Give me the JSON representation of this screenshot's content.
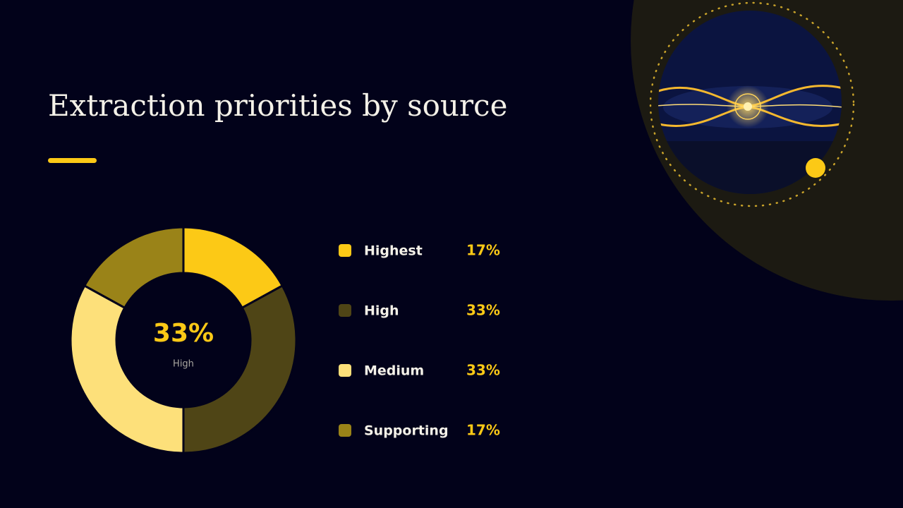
{
  "chart_data": {
    "type": "pie",
    "donut": true,
    "title": "Extraction priorities by source",
    "categories": [
      "Highest",
      "High",
      "Medium",
      "Supporting"
    ],
    "values": [
      17,
      33,
      33,
      17
    ],
    "value_labels": [
      "17%",
      "33%",
      "33%",
      "17%"
    ],
    "colors": [
      "#fcc916",
      "#4f4516",
      "#fde07a",
      "#9a8318"
    ],
    "highlight": 1
  }
}
